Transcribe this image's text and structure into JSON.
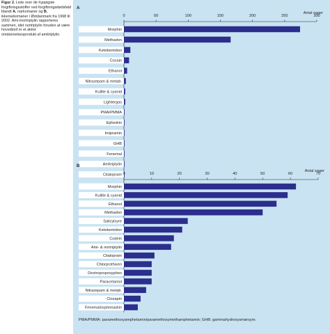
{
  "caption": {
    "figure_label": "Figur 2.",
    "text_1": "Liste over de hyppigste forgiftningsstoffer ved forgiftningsdødsfald blandt",
    "label_a": "A.",
    "text_2": "narkomaner og",
    "label_b": "B.",
    "text_3": "ikkenarkomaner i Østdanmark fra 1998 til 2002. Ami-/nortriptylin rapporteres sammen, idet nortriptylin foruden at være hovedstof er et aktivt omdannelsesprodukt af amitriptylin."
  },
  "footnote": "PMA/PMMA: paramethoxyamphetamin/paramethoxymethamphetamin; GHB: gammahydroxysmørsyre.",
  "colors": {
    "bar": "#2b2e8c",
    "panel": "#c9e3f2",
    "text": "#231f20"
  },
  "chart_data": [
    {
      "type": "bar",
      "orientation": "horizontal",
      "panel_label": "A",
      "ylabel": "Antal sager",
      "xlim": [
        0,
        300
      ],
      "ticks": [
        0,
        50,
        100,
        150,
        200,
        250,
        300
      ],
      "categories": [
        "Morphin",
        "Methadon",
        "Ketobemidon",
        "Cocain",
        "Ethanol",
        "Nitrazepam & metab.",
        "Kulilte & cyanid",
        "Lightergas",
        "PMA/PMMA",
        "Ephedrin",
        "Imipramin",
        "GHB",
        "Fenemal",
        "Amitriptylin",
        "Citalopram"
      ],
      "values": [
        274,
        166,
        10,
        8,
        5,
        3,
        2,
        2,
        1,
        1,
        1,
        1,
        1,
        1,
        1
      ]
    },
    {
      "type": "bar",
      "orientation": "horizontal",
      "panel_label": "B",
      "ylabel": "Antal sager",
      "xlim": [
        0,
        70
      ],
      "ticks": [
        0,
        10,
        20,
        30,
        40,
        50,
        60,
        70
      ],
      "categories": [
        "Morphin",
        "Kulilte & cyanid",
        "Ethanol",
        "Methadon",
        "Salicylsyre",
        "Ketobemidon",
        "Codein",
        "Ami- & nortriptylin",
        "Citalopram",
        "Chlorprothixen",
        "Dextropropoxyphen",
        "Paracetamol",
        "Nitrazepam & metab.",
        "Clozapin",
        "Fenemal/orphenadrin"
      ],
      "values": [
        62,
        59,
        55,
        50,
        23,
        21,
        18,
        17,
        11,
        10,
        10,
        10,
        8,
        6,
        5
      ]
    }
  ]
}
